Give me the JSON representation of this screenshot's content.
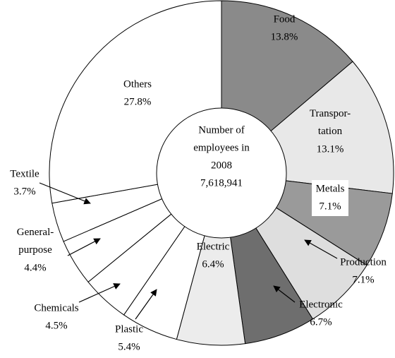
{
  "chart_data": {
    "type": "donut",
    "categories": [
      "Food",
      "Transpor-tation",
      "Metals",
      "Production",
      "Electronic",
      "Electric",
      "Plastic",
      "Chemicals",
      "General-purpose",
      "Textile",
      "Others"
    ],
    "values": [
      13.8,
      13.1,
      7.1,
      7.1,
      6.7,
      6.4,
      5.4,
      4.5,
      4.4,
      3.7,
      27.8
    ],
    "value_labels": [
      "13.8%",
      "13.1%",
      "7.1%",
      "7.1%",
      "6.7%",
      "6.4%",
      "5.4%",
      "4.5%",
      "4.4%",
      "3.7%",
      "27.8%"
    ],
    "colors": [
      "#8a8a8a",
      "#e8e8e8",
      "#9a9a9a",
      "#dedede",
      "#6e6e6e",
      "#ececec",
      "#ffffff",
      "#ffffff",
      "#ffffff",
      "#ffffff",
      "#ffffff"
    ],
    "center_label": [
      "Number of",
      "employees in",
      "2008"
    ],
    "total": {
      "value": 7618941,
      "label": "7,618,941"
    }
  }
}
